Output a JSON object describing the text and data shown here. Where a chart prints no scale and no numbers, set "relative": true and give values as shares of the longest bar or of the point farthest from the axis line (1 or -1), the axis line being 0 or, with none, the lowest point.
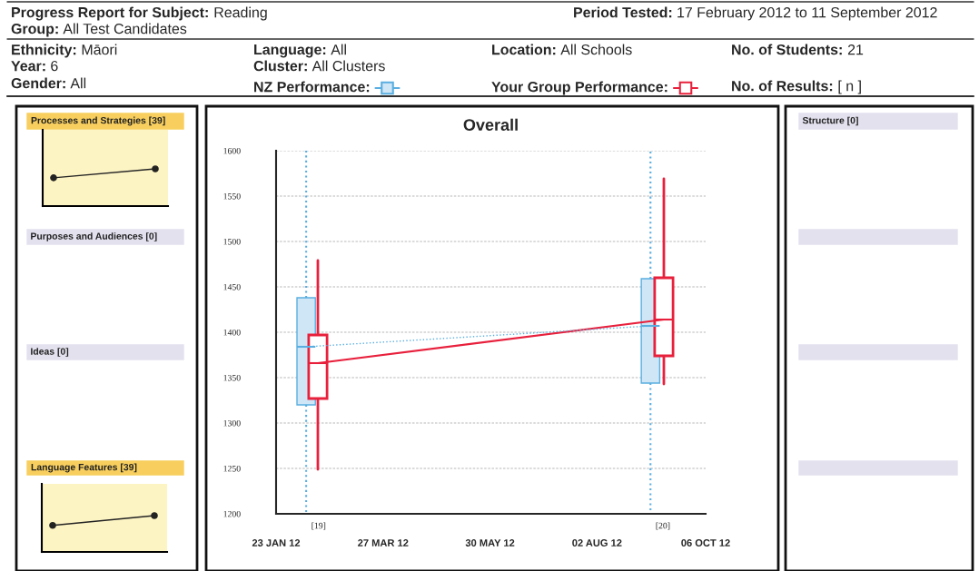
{
  "chart_data": [
    {
      "type": "other",
      "annotations": [
        "Progress Report for Subject:",
        "Reading",
        "Period Tested:",
        "17 February 2012 to 11 September 2012",
        "Group:",
        "All Test Candidates",
        "Ethnicity:",
        "Māori",
        "Year:",
        "6",
        "Gender:",
        "All",
        "Language:",
        "All",
        "Cluster:",
        "All Clusters",
        "Location:",
        "All Schools",
        "No. of Students:",
        "21",
        "No. of Results:",
        "[ n ]"
      ]
    },
    {
      "type": "line",
      "title": "Processes and Strategies [39]",
      "categories": [
        null,
        null
      ],
      "values": [
        0.76,
        1
      ],
      "relative": true,
      "marker": "circle",
      "color": "#222222"
    },
    {
      "type": "other",
      "title": "Purposes and Audiences [0]"
    },
    {
      "type": "other",
      "title": "Ideas [0]"
    },
    {
      "type": "line",
      "title": "Language Features [39]",
      "categories": [
        null,
        null
      ],
      "values": [
        0.73,
        1
      ],
      "relative": true,
      "marker": "circle",
      "color": "#222222"
    },
    {
      "type": "box",
      "title": "Overall",
      "xlim": [
        "2012-01-23",
        "2012-10-06"
      ],
      "xticks": [
        {
          "value": "2012-01-23",
          "label": "23 JAN 12"
        },
        {
          "value": "2012-03-27",
          "label": "27 MAR 12"
        },
        {
          "value": "2012-05-30",
          "label": "30 MAY 12"
        },
        {
          "value": "2012-08-02",
          "label": "02 AUG 12"
        },
        {
          "value": "2012-10-06",
          "label": "06 OCT 12"
        }
      ],
      "ylim": [
        1200,
        1600
      ],
      "yticks": [
        1200,
        1250,
        1300,
        1350,
        1400,
        1450,
        1500,
        1550,
        1600
      ],
      "grid": "y",
      "legend": "top",
      "series": [
        {
          "name": "NZ Performance:",
          "type": "box",
          "color": "#5aaee0",
          "x": [
            "2012-02-10",
            "2012-09-03"
          ],
          "boxes": [
            {
              "low": 1200,
              "q1": 1320,
              "median": 1384,
              "q3": 1438,
              "high": 1600
            },
            {
              "low": 1200,
              "q1": 1344,
              "median": 1407,
              "q3": 1459,
              "high": 1600
            }
          ]
        },
        {
          "name": "Your Group Performance:",
          "type": "box",
          "color": "#e8203c",
          "x": [
            "2012-02-17",
            "2012-09-11"
          ],
          "boxes": [
            {
              "low": 1249,
              "q1": 1327,
              "median": 1366,
              "q3": 1397,
              "high": 1479
            },
            {
              "low": 1343,
              "q1": 1374,
              "median": 1414,
              "q3": 1460,
              "high": 1569
            }
          ]
        },
        {
          "type": "line",
          "color": "#e8203c",
          "x": [
            "2012-02-17",
            "2012-09-11"
          ],
          "values": [
            1366,
            1414
          ]
        },
        {
          "type": "line",
          "color": "#5aaee0",
          "line_style": "dotted",
          "x": [
            "2012-02-10",
            "2012-09-03"
          ],
          "values": [
            1384,
            1407
          ]
        }
      ],
      "annotations": [
        {
          "text": "[19]",
          "x": "2012-02-10",
          "y": 1200
        },
        {
          "text": "[20]",
          "x": "2012-09-03",
          "y": 1200
        }
      ]
    },
    {
      "type": "other",
      "title": "Structure [0]"
    }
  ]
}
